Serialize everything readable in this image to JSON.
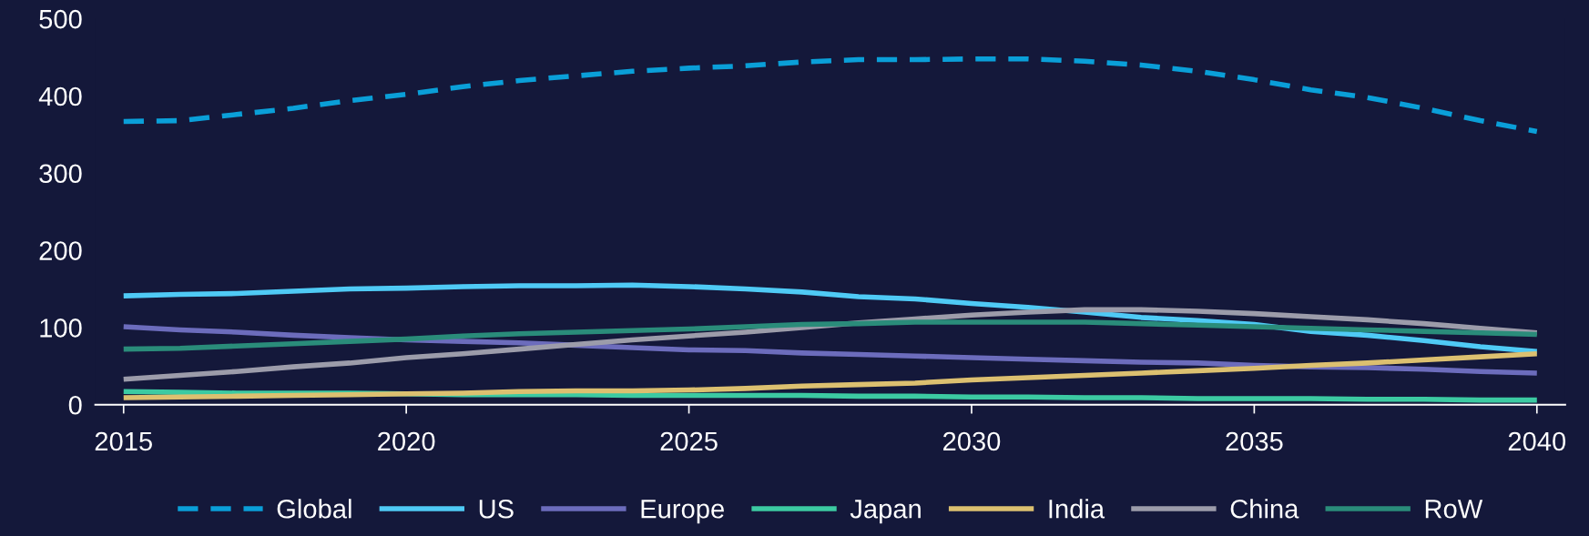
{
  "chart_data": {
    "type": "line",
    "x": [
      2015,
      2016,
      2017,
      2018,
      2019,
      2020,
      2021,
      2022,
      2023,
      2024,
      2025,
      2026,
      2027,
      2028,
      2029,
      2030,
      2031,
      2032,
      2033,
      2034,
      2035,
      2036,
      2037,
      2038,
      2039,
      2040
    ],
    "xlim": [
      2014.5,
      2040.5
    ],
    "xticks": [
      2015,
      2020,
      2025,
      2030,
      2035,
      2040
    ],
    "ylim": [
      0,
      500
    ],
    "yticks": [
      0,
      100,
      200,
      300,
      400,
      500
    ],
    "grid": false,
    "legend": "bottom",
    "marker": "none",
    "series": [
      {
        "name": "Global",
        "color": "#0a9fd8",
        "line_style": "dashed",
        "values": [
          367,
          368,
          376,
          384,
          394,
          402,
          412,
          420,
          426,
          432,
          436,
          439,
          444,
          447,
          447,
          448,
          448,
          445,
          440,
          432,
          421,
          408,
          398,
          384,
          368,
          354
        ]
      },
      {
        "name": "US",
        "color": "#4fcaf5",
        "values": [
          141,
          143,
          144,
          147,
          150,
          151,
          153,
          154,
          154,
          155,
          153,
          150,
          146,
          140,
          137,
          131,
          126,
          120,
          113,
          109,
          104,
          95,
          90,
          83,
          75,
          69
        ]
      },
      {
        "name": "Europe",
        "color": "#6c6cbc",
        "values": [
          101,
          97,
          94,
          90,
          87,
          84,
          82,
          80,
          77,
          74,
          71,
          70,
          67,
          65,
          63,
          61,
          59,
          57,
          55,
          54,
          51,
          49,
          48,
          46,
          43,
          41
        ]
      },
      {
        "name": "Japan",
        "color": "#3ccaa2",
        "values": [
          17,
          16,
          15,
          15,
          15,
          14,
          13,
          13,
          13,
          12,
          12,
          12,
          12,
          11,
          11,
          10,
          10,
          9,
          9,
          8,
          8,
          8,
          7,
          7,
          6,
          6
        ]
      },
      {
        "name": "India",
        "color": "#dcc070",
        "values": [
          9,
          10,
          11,
          12,
          13,
          14,
          15,
          17,
          18,
          18,
          19,
          21,
          24,
          26,
          28,
          32,
          35,
          38,
          41,
          44,
          47,
          51,
          54,
          58,
          62,
          66
        ]
      },
      {
        "name": "China",
        "color": "#9c9caa",
        "values": [
          33,
          38,
          43,
          49,
          54,
          61,
          66,
          72,
          78,
          84,
          89,
          94,
          100,
          106,
          111,
          116,
          120,
          123,
          123,
          121,
          118,
          114,
          110,
          105,
          99,
          93
        ]
      },
      {
        "name": "RoW",
        "color": "#2a8c7a",
        "values": [
          72,
          73,
          76,
          79,
          82,
          85,
          89,
          92,
          94,
          96,
          98,
          101,
          104,
          105,
          107,
          107,
          107,
          107,
          105,
          103,
          101,
          99,
          97,
          95,
          93,
          91
        ]
      }
    ]
  }
}
